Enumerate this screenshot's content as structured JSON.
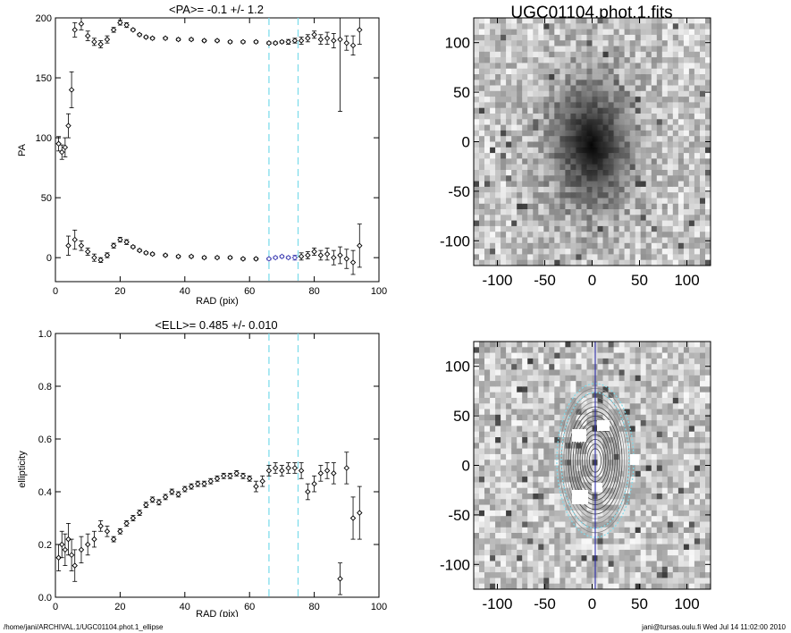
{
  "footer": {
    "left": "/home/jani/ARCHIVAL.1/UGC01104.phot.1_ellipse",
    "right": "jani@tursas.oulu.fi  Wed Jul 14 11:02:00 2010"
  },
  "colors": {
    "marker": "#000000",
    "highlight": "#3a3ab0",
    "dash": "#7fdcec",
    "major_axis": "#2020aa"
  },
  "chart_data": [
    {
      "type": "scatter",
      "title": "<PA>=  -0.1 +/-   1.2",
      "xlabel": "RAD (pix)",
      "ylabel": "PA",
      "xlim": [
        0,
        100
      ],
      "ylim": [
        -20,
        200
      ],
      "xticks": [
        "0",
        "20",
        "40",
        "60",
        "80",
        "100"
      ],
      "yticks": [
        "0",
        "50",
        "100",
        "150",
        "200"
      ],
      "fit_range": [
        66,
        75
      ],
      "series": [
        {
          "points": [
            [
              1,
              95
            ],
            [
              2,
              88
            ],
            [
              3,
              92
            ],
            [
              4,
              110
            ],
            [
              5,
              140
            ],
            [
              6,
              190
            ],
            [
              8,
              195
            ],
            [
              10,
              185
            ],
            [
              12,
              180
            ],
            [
              14,
              178
            ],
            [
              16,
              182
            ],
            [
              18,
              190
            ],
            [
              20,
              196
            ],
            [
              22,
              194
            ],
            [
              24,
              190
            ],
            [
              26,
              186
            ],
            [
              28,
              184
            ],
            [
              30,
              183
            ],
            [
              34,
              183
            ],
            [
              38,
              182
            ],
            [
              42,
              182
            ],
            [
              46,
              181
            ],
            [
              50,
              181
            ],
            [
              54,
              180
            ],
            [
              58,
              180
            ],
            [
              62,
              180
            ],
            [
              66,
              179
            ],
            [
              68,
              179
            ],
            [
              70,
              180
            ],
            [
              72,
              180
            ],
            [
              74,
              181
            ],
            [
              76,
              181
            ],
            [
              78,
              183
            ],
            [
              80,
              186
            ],
            [
              82,
              182
            ],
            [
              84,
              183
            ],
            [
              86,
              181
            ],
            [
              88,
              182
            ],
            [
              90,
              179
            ],
            [
              92,
              177
            ],
            [
              94,
              190
            ]
          ],
          "errors": [
            [
              1,
              6
            ],
            [
              2,
              6
            ],
            [
              3,
              8
            ],
            [
              4,
              10
            ],
            [
              5,
              15
            ],
            [
              6,
              6
            ],
            [
              8,
              5
            ],
            [
              10,
              4
            ],
            [
              12,
              3
            ],
            [
              14,
              3
            ],
            [
              16,
              3
            ],
            [
              18,
              2
            ],
            [
              20,
              2
            ],
            [
              22,
              2
            ],
            [
              24,
              1
            ],
            [
              26,
              1
            ],
            [
              28,
              1
            ],
            [
              30,
              1
            ],
            [
              34,
              1
            ],
            [
              38,
              1
            ],
            [
              42,
              1
            ],
            [
              46,
              1
            ],
            [
              50,
              1
            ],
            [
              54,
              1
            ],
            [
              58,
              1
            ],
            [
              62,
              1
            ],
            [
              66,
              1
            ],
            [
              68,
              1
            ],
            [
              70,
              1
            ],
            [
              72,
              2
            ],
            [
              74,
              2
            ],
            [
              76,
              3
            ],
            [
              78,
              3
            ],
            [
              80,
              3
            ],
            [
              82,
              4
            ],
            [
              84,
              5
            ],
            [
              86,
              6
            ],
            [
              88,
              60
            ],
            [
              90,
              6
            ],
            [
              92,
              8
            ],
            [
              94,
              12
            ]
          ]
        },
        {
          "points": [
            [
              4,
              10
            ],
            [
              6,
              15
            ],
            [
              8,
              10
            ],
            [
              10,
              5
            ],
            [
              12,
              0
            ],
            [
              14,
              -2
            ],
            [
              16,
              2
            ],
            [
              18,
              10
            ],
            [
              20,
              15
            ],
            [
              22,
              13
            ],
            [
              24,
              9
            ],
            [
              26,
              6
            ],
            [
              28,
              4
            ],
            [
              30,
              3
            ],
            [
              34,
              2
            ],
            [
              38,
              1
            ],
            [
              42,
              1
            ],
            [
              46,
              0
            ],
            [
              50,
              0
            ],
            [
              54,
              0
            ],
            [
              58,
              -1
            ],
            [
              62,
              -1
            ],
            [
              66,
              -1
            ],
            [
              68,
              0
            ],
            [
              70,
              1
            ],
            [
              72,
              0
            ],
            [
              74,
              0
            ],
            [
              76,
              1
            ],
            [
              78,
              2
            ],
            [
              80,
              5
            ],
            [
              82,
              2
            ],
            [
              84,
              3
            ],
            [
              86,
              0
            ],
            [
              88,
              2
            ],
            [
              90,
              -1
            ],
            [
              92,
              -4
            ],
            [
              94,
              10
            ]
          ],
          "errors": [
            [
              4,
              8
            ],
            [
              6,
              8
            ],
            [
              8,
              4
            ],
            [
              10,
              3
            ],
            [
              12,
              3
            ],
            [
              14,
              2
            ],
            [
              16,
              2
            ],
            [
              18,
              2
            ],
            [
              20,
              2
            ],
            [
              22,
              2
            ],
            [
              24,
              1
            ],
            [
              26,
              1
            ],
            [
              28,
              1
            ],
            [
              30,
              1
            ],
            [
              34,
              1
            ],
            [
              38,
              1
            ],
            [
              42,
              1
            ],
            [
              46,
              1
            ],
            [
              50,
              1
            ],
            [
              54,
              1
            ],
            [
              58,
              1
            ],
            [
              62,
              1
            ],
            [
              66,
              1
            ],
            [
              68,
              1
            ],
            [
              70,
              1
            ],
            [
              72,
              1
            ],
            [
              74,
              2
            ],
            [
              76,
              3
            ],
            [
              78,
              3
            ],
            [
              80,
              3
            ],
            [
              82,
              4
            ],
            [
              84,
              5
            ],
            [
              86,
              6
            ],
            [
              88,
              7
            ],
            [
              90,
              8
            ],
            [
              92,
              10
            ],
            [
              94,
              18
            ]
          ]
        }
      ]
    },
    {
      "type": "heatmap",
      "title": "UGC01104.phot.1.fits",
      "xlim": [
        -125,
        125
      ],
      "ylim": [
        -125,
        125
      ],
      "xticks": [
        "-100",
        "-50",
        "0",
        "50",
        "100"
      ],
      "yticks": [
        "-100",
        "-50",
        "0",
        "50",
        "100"
      ]
    },
    {
      "type": "scatter",
      "title": "<ELL>= 0.485 +/-   0.010",
      "xlabel": "RAD (pix)",
      "ylabel": "ellipticity",
      "xlim": [
        0,
        100
      ],
      "ylim": [
        0,
        1
      ],
      "xticks": [
        "0",
        "20",
        "40",
        "60",
        "80",
        "100"
      ],
      "yticks": [
        "0.0",
        "0.2",
        "0.4",
        "0.6",
        "0.8",
        "1.0"
      ],
      "fit_range": [
        66,
        75
      ],
      "series": [
        {
          "points": [
            [
              1,
              0.15
            ],
            [
              2,
              0.2
            ],
            [
              3,
              0.18
            ],
            [
              4,
              0.22
            ],
            [
              5,
              0.16
            ],
            [
              6,
              0.12
            ],
            [
              8,
              0.18
            ],
            [
              10,
              0.2
            ],
            [
              12,
              0.22
            ],
            [
              14,
              0.27
            ],
            [
              16,
              0.25
            ],
            [
              18,
              0.22
            ],
            [
              20,
              0.25
            ],
            [
              22,
              0.28
            ],
            [
              24,
              0.3
            ],
            [
              26,
              0.32
            ],
            [
              28,
              0.35
            ],
            [
              30,
              0.37
            ],
            [
              32,
              0.36
            ],
            [
              34,
              0.38
            ],
            [
              36,
              0.4
            ],
            [
              38,
              0.39
            ],
            [
              40,
              0.41
            ],
            [
              42,
              0.42
            ],
            [
              44,
              0.43
            ],
            [
              46,
              0.43
            ],
            [
              48,
              0.44
            ],
            [
              50,
              0.45
            ],
            [
              52,
              0.46
            ],
            [
              54,
              0.46
            ],
            [
              56,
              0.47
            ],
            [
              58,
              0.46
            ],
            [
              60,
              0.45
            ],
            [
              62,
              0.42
            ],
            [
              64,
              0.44
            ],
            [
              66,
              0.48
            ],
            [
              68,
              0.49
            ],
            [
              70,
              0.48
            ],
            [
              72,
              0.49
            ],
            [
              74,
              0.49
            ],
            [
              76,
              0.48
            ],
            [
              78,
              0.4
            ],
            [
              80,
              0.43
            ],
            [
              82,
              0.47
            ],
            [
              84,
              0.48
            ],
            [
              86,
              0.47
            ],
            [
              88,
              0.07
            ],
            [
              90,
              0.49
            ],
            [
              92,
              0.3
            ],
            [
              94,
              0.32
            ]
          ],
          "errors": [
            [
              1,
              0.05
            ],
            [
              2,
              0.05
            ],
            [
              3,
              0.06
            ],
            [
              4,
              0.06
            ],
            [
              5,
              0.06
            ],
            [
              6,
              0.06
            ],
            [
              8,
              0.05
            ],
            [
              10,
              0.04
            ],
            [
              12,
              0.03
            ],
            [
              14,
              0.02
            ],
            [
              16,
              0.02
            ],
            [
              18,
              0.01
            ],
            [
              20,
              0.01
            ],
            [
              22,
              0.01
            ],
            [
              24,
              0.01
            ],
            [
              26,
              0.01
            ],
            [
              28,
              0.01
            ],
            [
              30,
              0.01
            ],
            [
              32,
              0.01
            ],
            [
              34,
              0.01
            ],
            [
              36,
              0.01
            ],
            [
              38,
              0.01
            ],
            [
              40,
              0.01
            ],
            [
              42,
              0.01
            ],
            [
              44,
              0.01
            ],
            [
              46,
              0.01
            ],
            [
              48,
              0.01
            ],
            [
              50,
              0.01
            ],
            [
              52,
              0.01
            ],
            [
              54,
              0.01
            ],
            [
              56,
              0.01
            ],
            [
              58,
              0.01
            ],
            [
              60,
              0.01
            ],
            [
              62,
              0.02
            ],
            [
              64,
              0.02
            ],
            [
              66,
              0.02
            ],
            [
              68,
              0.02
            ],
            [
              70,
              0.02
            ],
            [
              72,
              0.02
            ],
            [
              74,
              0.02
            ],
            [
              76,
              0.03
            ],
            [
              78,
              0.03
            ],
            [
              80,
              0.03
            ],
            [
              82,
              0.03
            ],
            [
              84,
              0.03
            ],
            [
              86,
              0.04
            ],
            [
              88,
              0.06
            ],
            [
              90,
              0.06
            ],
            [
              92,
              0.08
            ],
            [
              94,
              0.1
            ]
          ]
        }
      ]
    },
    {
      "type": "heatmap",
      "title": "",
      "xlim": [
        -125,
        125
      ],
      "ylim": [
        -125,
        125
      ],
      "xticks": [
        "-100",
        "-50",
        "0",
        "50",
        "100"
      ],
      "yticks": [
        "-100",
        "-50",
        "0",
        "50",
        "100"
      ]
    }
  ]
}
